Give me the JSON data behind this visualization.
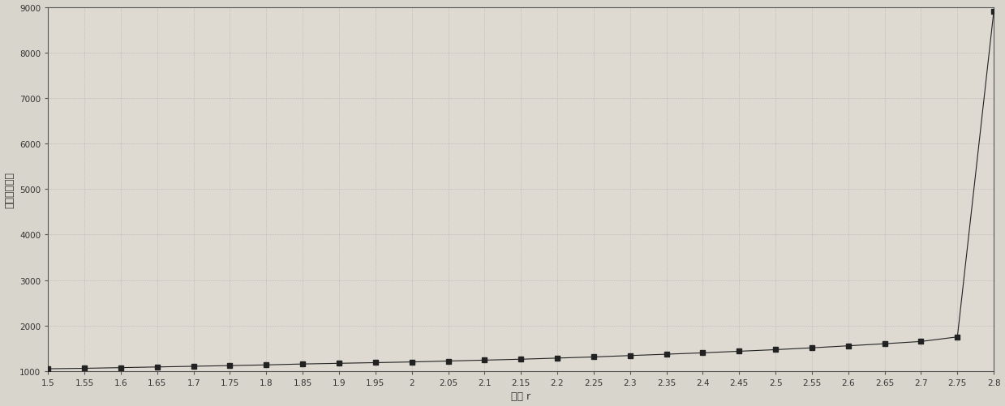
{
  "xlabel": "变量 r",
  "ylabel": "体积（体素）",
  "ylim": [
    1000,
    9000
  ],
  "xlim": [
    1.5,
    2.8
  ],
  "yticks": [
    1000,
    2000,
    3000,
    4000,
    5000,
    6000,
    7000,
    8000,
    9000
  ],
  "xticks": [
    1.5,
    1.55,
    1.6,
    1.65,
    1.7,
    1.75,
    1.8,
    1.85,
    1.9,
    1.95,
    2.0,
    2.05,
    2.1,
    2.15,
    2.2,
    2.25,
    2.3,
    2.35,
    2.4,
    2.45,
    2.5,
    2.55,
    2.6,
    2.65,
    2.7,
    2.75,
    2.8
  ],
  "xtick_labels": [
    "1.5",
    "1.55",
    "1.6",
    "1.65",
    "1.7",
    "1.75",
    "1.8",
    "1.85",
    "1.9",
    "1.95",
    "2",
    "2.05",
    "2.1",
    "2.15",
    "2.2",
    "2.25",
    "2.3",
    "2.35",
    "2.4",
    "2.45",
    "2.5",
    "2.55",
    "2.6",
    "2.65",
    "2.7",
    "2.75",
    "2.8"
  ],
  "line_color": "#222222",
  "marker": "s",
  "marker_size": 4,
  "bg_color": "#d8d5cc",
  "plot_bg_color": "#dedad2",
  "grid_color": "#aaaaaa",
  "spine_color": "#555555",
  "tick_color": "#333333",
  "label_color": "#333333",
  "y_values": [
    1050,
    1060,
    1075,
    1090,
    1105,
    1120,
    1135,
    1155,
    1170,
    1185,
    1200,
    1220,
    1240,
    1260,
    1285,
    1310,
    1340,
    1370,
    1400,
    1435,
    1470,
    1510,
    1555,
    1600,
    1650,
    1750,
    8900
  ],
  "tick_fontsize": 7.5,
  "label_fontsize": 9
}
